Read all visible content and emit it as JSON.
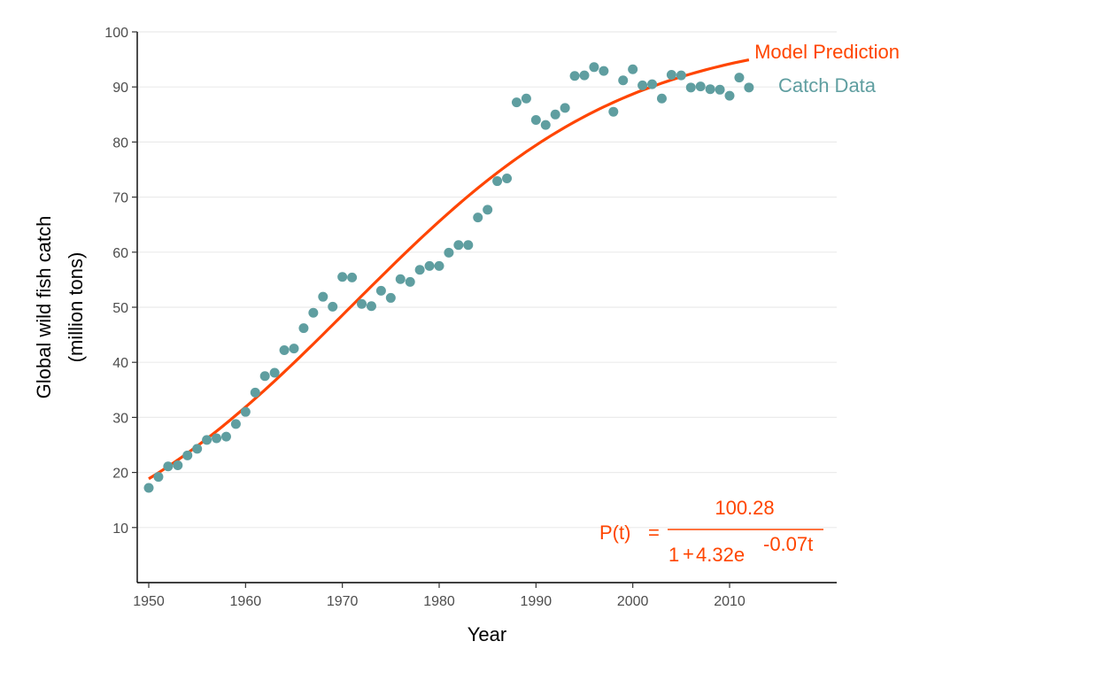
{
  "chart_data": {
    "type": "scatter",
    "xlabel": "Year",
    "ylabel_line1": "Global wild fish catch",
    "ylabel_line2": "(million tons)",
    "xlim": [
      1949,
      2020
    ],
    "ylim": [
      0,
      100
    ],
    "x_ticks": [
      1950,
      1960,
      1970,
      1980,
      1990,
      2000,
      2010
    ],
    "y_ticks": [
      10,
      20,
      30,
      40,
      50,
      60,
      70,
      80,
      90,
      100
    ],
    "grid": "horizontal",
    "series": [
      {
        "name": "Catch Data",
        "kind": "points",
        "color": "#5f9ea0",
        "x": [
          1950,
          1951,
          1952,
          1953,
          1954,
          1955,
          1956,
          1957,
          1958,
          1959,
          1960,
          1961,
          1962,
          1963,
          1964,
          1965,
          1966,
          1967,
          1968,
          1969,
          1970,
          1971,
          1972,
          1973,
          1974,
          1975,
          1976,
          1977,
          1978,
          1979,
          1980,
          1981,
          1982,
          1983,
          1984,
          1985,
          1986,
          1987,
          1988,
          1989,
          1990,
          1991,
          1992,
          1993,
          1994,
          1995,
          1996,
          1997,
          1998,
          1999,
          2000,
          2001,
          2002,
          2003,
          2004,
          2005,
          2006,
          2007,
          2008,
          2009,
          2010,
          2011,
          2012
        ],
        "y": [
          17.2,
          19.2,
          21.1,
          21.3,
          23.1,
          24.3,
          25.9,
          26.2,
          26.5,
          28.8,
          31.0,
          34.5,
          37.5,
          38.1,
          42.2,
          42.5,
          46.2,
          49.0,
          51.9,
          50.1,
          55.5,
          55.4,
          50.6,
          50.2,
          53.0,
          51.7,
          55.1,
          54.6,
          56.8,
          57.5,
          57.5,
          59.9,
          61.3,
          61.3,
          66.3,
          67.7,
          72.9,
          73.4,
          87.2,
          87.9,
          84.0,
          83.1,
          85.0,
          86.2,
          92.0,
          92.1,
          93.6,
          92.9,
          85.5,
          91.2,
          93.2,
          90.3,
          90.5,
          87.9,
          92.2,
          92.1,
          89.9,
          90.1,
          89.6,
          89.5,
          88.4,
          91.7,
          89.9
        ]
      },
      {
        "name": "Model Prediction",
        "kind": "line",
        "color": "#ff4500",
        "K": 100.28,
        "A": 4.32,
        "r": 0.07,
        "x_start": 1950,
        "x_end": 2012
      }
    ],
    "labels": {
      "catch": "Catch Data",
      "model": "Model Prediction"
    },
    "equation": {
      "lhs": "P(t)",
      "equals": "=",
      "numerator": "100.28",
      "denom_one": "1",
      "denom_plus": "+",
      "denom_coef": "4.32e",
      "denom_exp": "-0.07t",
      "color": "#ff4500"
    }
  }
}
